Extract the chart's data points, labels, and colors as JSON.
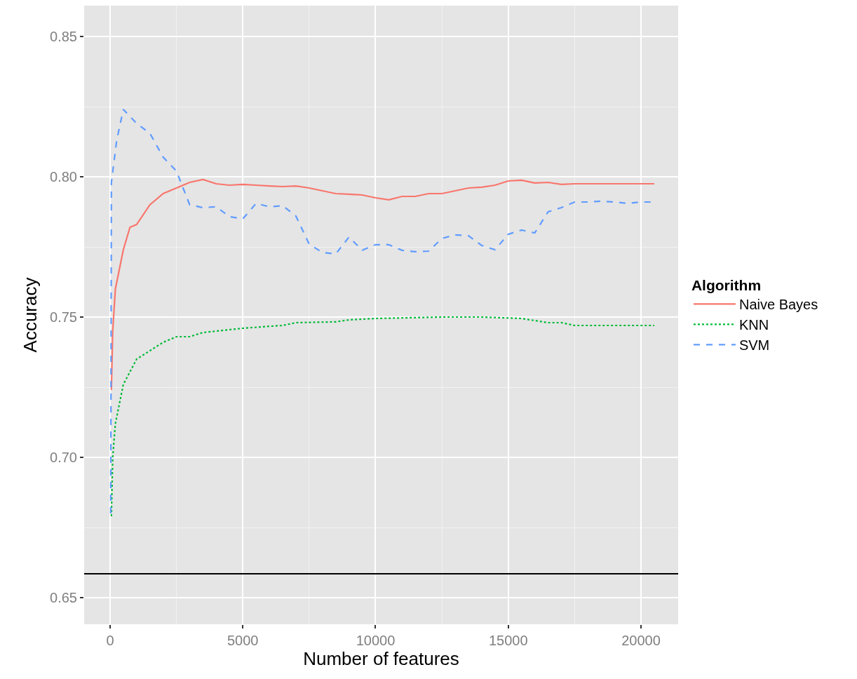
{
  "chart_data": {
    "type": "line",
    "xlabel": "Number of features",
    "ylabel": "Accuracy",
    "legend_title": "Algorithm",
    "legend": "right",
    "grid": true,
    "marker": "none",
    "xlim": [
      -976,
      21400
    ],
    "xticks": [
      0,
      5000,
      10000,
      15000,
      20000
    ],
    "ylim": [
      0.6405,
      0.861
    ],
    "yticks": [
      0.65,
      {
        "value": 0.7,
        "label": "0.70"
      },
      0.75,
      {
        "value": 0.8,
        "label": "0.80"
      },
      0.85
    ],
    "ref_lines": [
      {
        "axis": "y",
        "value": 0.6585,
        "color": "#000000",
        "line_style": "solid"
      }
    ],
    "series": [
      {
        "name": "Naive Bayes",
        "color": "#f8766d",
        "line_style": "solid",
        "x": [
          50,
          100,
          200,
          500,
          750,
          1000,
          1500,
          2000,
          2500,
          3000,
          3500,
          4000,
          4500,
          5000,
          5500,
          6000,
          6500,
          7000,
          7500,
          8000,
          8500,
          9000,
          9500,
          10000,
          10500,
          11000,
          11500,
          12000,
          12500,
          13000,
          13500,
          14000,
          14500,
          15000,
          15500,
          16000,
          16500,
          17000,
          17500,
          18000,
          18500,
          19000,
          19500,
          20000,
          20500
        ],
        "values": [
          0.724,
          0.745,
          0.76,
          0.774,
          0.782,
          0.783,
          0.79,
          0.794,
          0.796,
          0.798,
          0.799,
          0.7975,
          0.797,
          0.7973,
          0.797,
          0.7967,
          0.7965,
          0.7967,
          0.796,
          0.795,
          0.794,
          0.7938,
          0.7935,
          0.7925,
          0.7918,
          0.793,
          0.793,
          0.794,
          0.794,
          0.795,
          0.796,
          0.7963,
          0.797,
          0.7985,
          0.7988,
          0.7978,
          0.798,
          0.7973,
          0.7975,
          0.7975,
          0.7975,
          0.7975,
          0.7975,
          0.7975,
          0.7975
        ]
      },
      {
        "name": "KNN",
        "color": "#00ba38",
        "line_style": "dotted",
        "x": [
          50,
          100,
          200,
          500,
          1000,
          1500,
          2000,
          2500,
          3000,
          3500,
          4000,
          5000,
          6000,
          6500,
          7000,
          8500,
          9000,
          10000,
          12500,
          14000,
          15500,
          16500,
          17000,
          17500,
          20500
        ],
        "values": [
          0.679,
          0.7,
          0.712,
          0.726,
          0.735,
          0.738,
          0.741,
          0.743,
          0.743,
          0.7445,
          0.745,
          0.746,
          0.7467,
          0.747,
          0.748,
          0.7483,
          0.749,
          0.7495,
          0.75,
          0.75,
          0.7495,
          0.748,
          0.748,
          0.747,
          0.747
        ]
      },
      {
        "name": "SVM",
        "color": "#619cff",
        "line_style": "dashed",
        "x": [
          25,
          50,
          250,
          500,
          1000,
          1500,
          2000,
          2500,
          3000,
          3500,
          4000,
          4500,
          5000,
          5500,
          6000,
          6500,
          7000,
          7500,
          8000,
          8500,
          9000,
          9500,
          10000,
          10500,
          11000,
          11500,
          12000,
          12500,
          13000,
          13500,
          14000,
          14500,
          15000,
          15500,
          16000,
          16500,
          17000,
          17500,
          18000,
          18500,
          19000,
          19500,
          20000,
          20500
        ],
        "values": [
          0.68,
          0.798,
          0.813,
          0.824,
          0.819,
          0.8155,
          0.807,
          0.802,
          0.79,
          0.789,
          0.7893,
          0.7858,
          0.785,
          0.7905,
          0.7893,
          0.7897,
          0.786,
          0.776,
          0.773,
          0.7725,
          0.7785,
          0.7738,
          0.7758,
          0.7758,
          0.7738,
          0.7733,
          0.7735,
          0.778,
          0.7793,
          0.779,
          0.7755,
          0.774,
          0.7795,
          0.781,
          0.78,
          0.7875,
          0.789,
          0.791,
          0.791,
          0.7913,
          0.791,
          0.7905,
          0.791,
          0.791
        ]
      }
    ]
  }
}
